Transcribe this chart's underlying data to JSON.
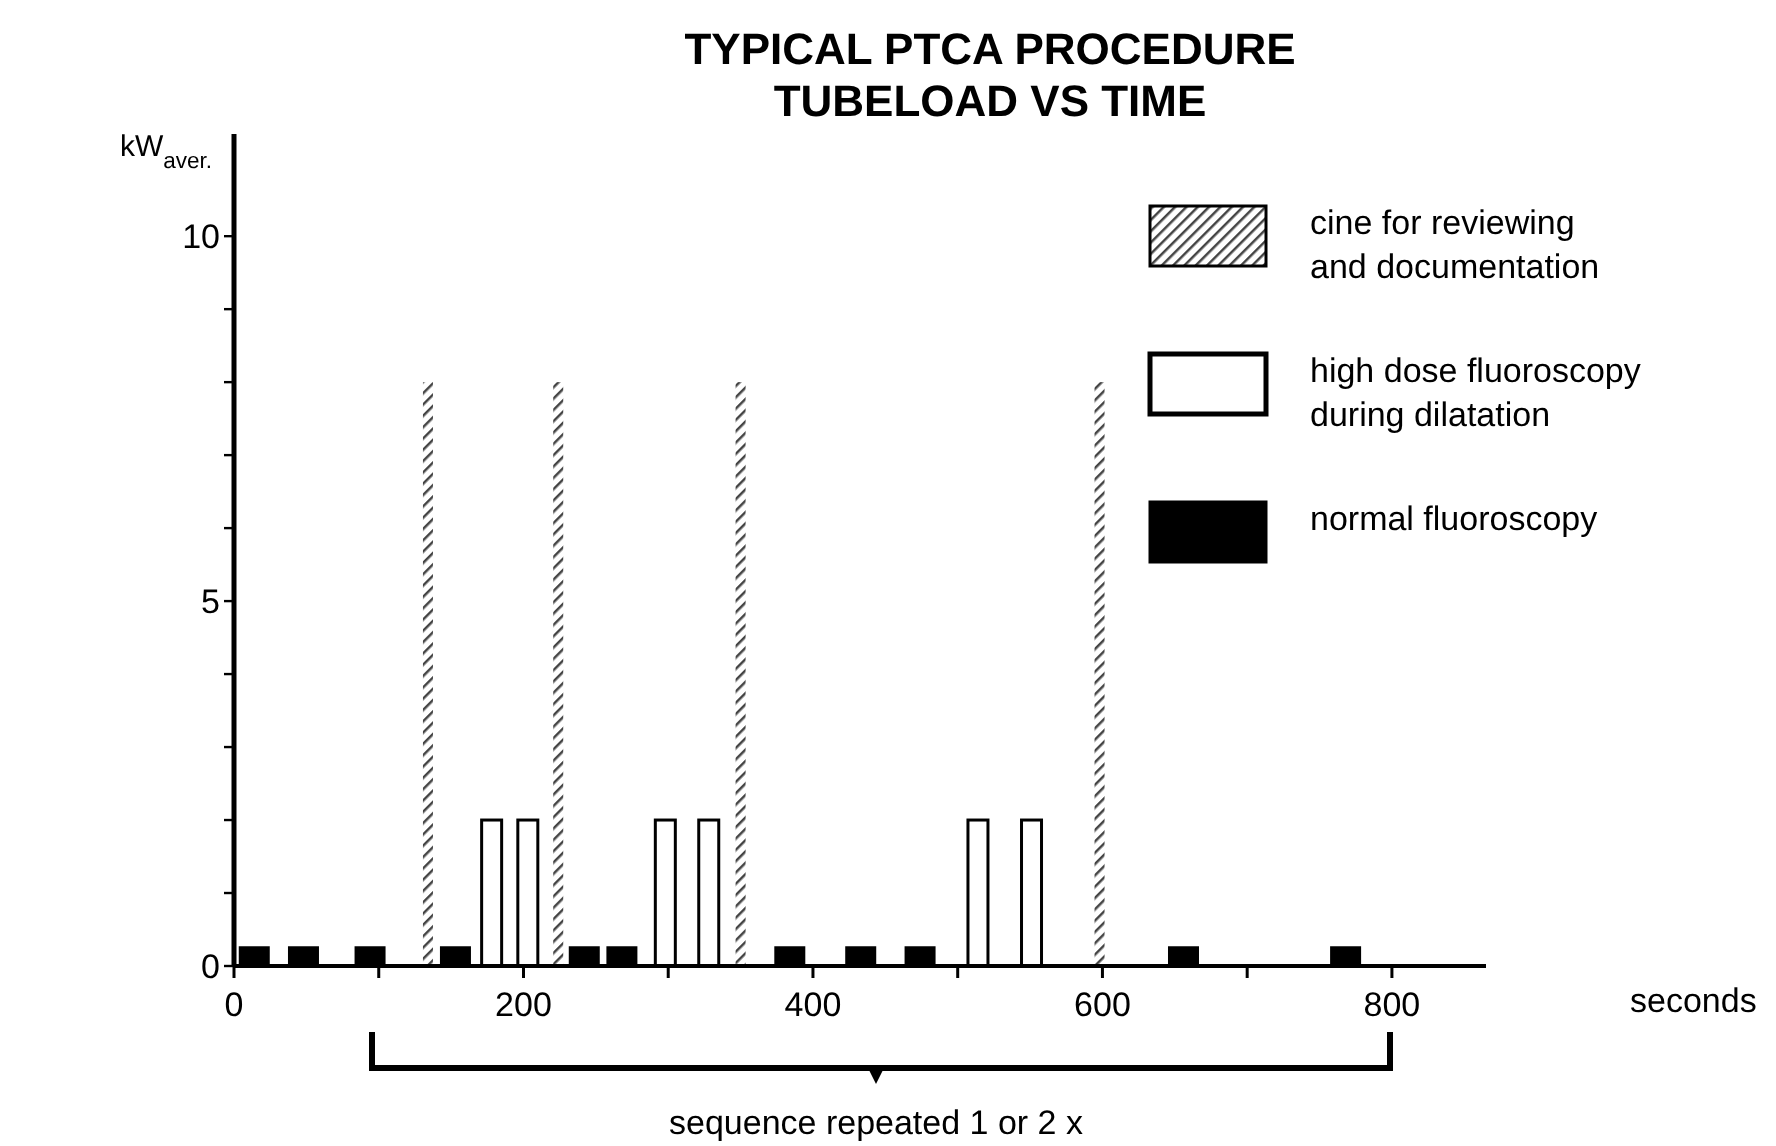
{
  "chart_data": {
    "type": "bar",
    "title": "TYPICAL PTCA PROCEDURE\nTUBELOAD VS TIME",
    "xlabel": "seconds",
    "ylabel": "kW$_{aver.}$",
    "xlim": [
      0,
      865
    ],
    "xticks": [
      0,
      {
        "value": 100,
        "label": null
      },
      200,
      {
        "value": 300,
        "label": null
      },
      400,
      {
        "value": 500,
        "label": null
      },
      600,
      {
        "value": 700,
        "label": null
      },
      800
    ],
    "ylim": [
      0,
      11.4
    ],
    "yticks": [
      0,
      {
        "value": 1,
        "label": null
      },
      {
        "value": 2,
        "label": null
      },
      {
        "value": 3,
        "label": null
      },
      {
        "value": 4,
        "label": null
      },
      5,
      {
        "value": 6,
        "label": null
      },
      {
        "value": 7,
        "label": null
      },
      {
        "value": 8,
        "label": null
      },
      {
        "value": 9,
        "label": null
      },
      10
    ],
    "grid": false,
    "legend": "top right",
    "series": [
      {
        "name": "cine for reviewing\nand documentation",
        "color": "#444444",
        "x": [
          134,
          224,
          350,
          598
        ],
        "values": [
          8,
          8,
          8,
          8
        ]
      },
      {
        "name": "high dose fluoroscopy\nduring dilatation",
        "color": "#ffffff",
        "x": [
          178,
          203,
          298,
          328,
          514,
          551
        ],
        "values": [
          2,
          2,
          2,
          2,
          2,
          2
        ]
      },
      {
        "name": "normal fluoroscopy",
        "color": "#000000",
        "x": [
          14,
          48,
          94,
          153,
          242,
          268,
          384,
          433,
          474,
          656,
          768
        ],
        "values": [
          0.25,
          0.25,
          0.25,
          0.25,
          0.25,
          0.25,
          0.25,
          0.25,
          0.25,
          0.25,
          0.25
        ]
      }
    ],
    "annotations": [
      "sequence repeated 1 or 2 x"
    ]
  }
}
